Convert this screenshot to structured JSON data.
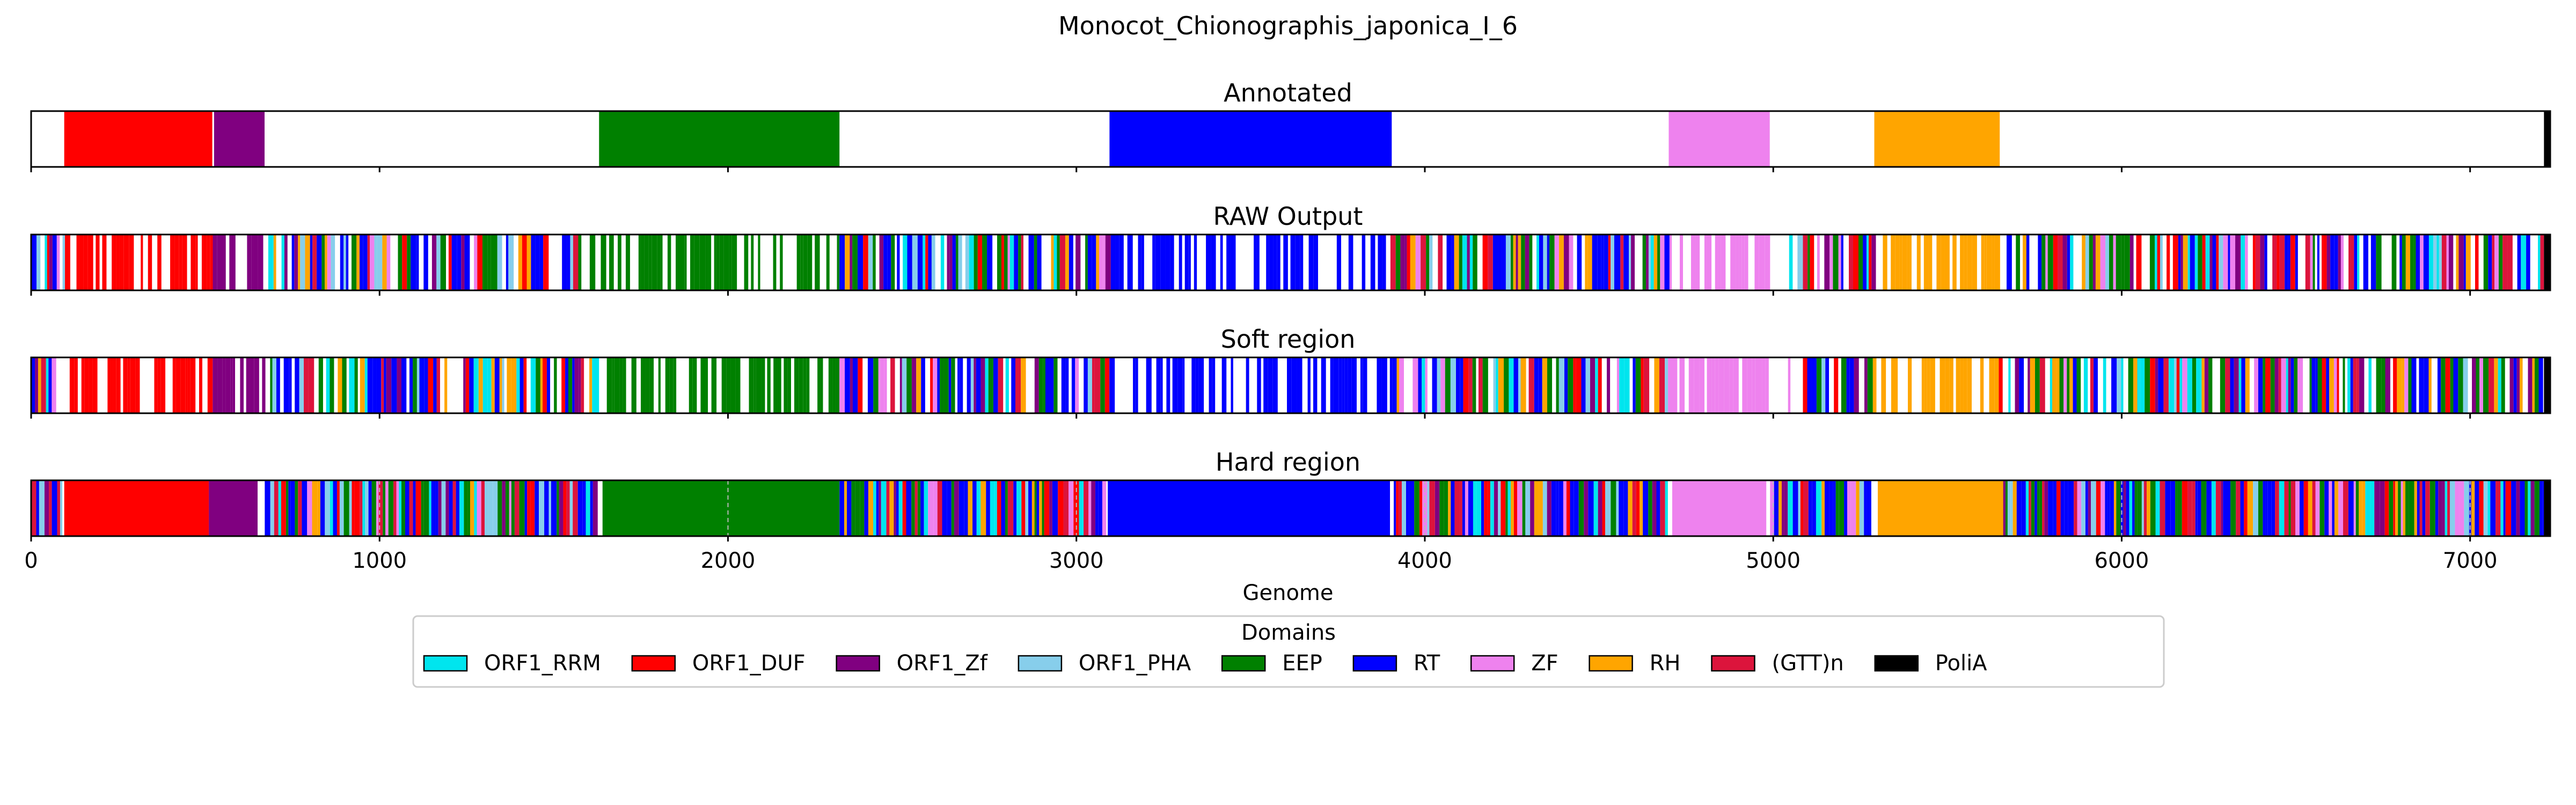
{
  "chart_data": {
    "type": "bar",
    "title": "Monocot_Chionographis_japonica_I_6",
    "xlabel": "Genome",
    "xlim": [
      0,
      7230
    ],
    "xticks": [
      0,
      1000,
      2000,
      3000,
      4000,
      5000,
      6000,
      7000
    ],
    "panels": [
      {
        "title": "Annotated",
        "segments": [
          {
            "domain": "ORF1_DUF",
            "start": 95,
            "end": 520
          },
          {
            "domain": "ORF1_Zf",
            "start": 525,
            "end": 670
          },
          {
            "domain": "EEP",
            "start": 1630,
            "end": 2320
          },
          {
            "domain": "RT",
            "start": 3095,
            "end": 3905
          },
          {
            "domain": "ZF",
            "start": 4700,
            "end": 4990
          },
          {
            "domain": "RH",
            "start": 5290,
            "end": 5650
          },
          {
            "domain": "PoliA",
            "start": 7212,
            "end": 7230
          }
        ]
      },
      {
        "title": "RAW Output",
        "mode": "raw",
        "gaps": [
          [
            4990,
            5040
          ]
        ]
      },
      {
        "title": "Soft region",
        "mode": "soft",
        "gaps": [
          [
            4990,
            5040
          ]
        ]
      },
      {
        "title": "Hard region",
        "mode": "hard",
        "segments": [
          {
            "domain": "ORF1_DUF",
            "start": 95,
            "end": 510
          },
          {
            "domain": "ORF1_Zf",
            "start": 510,
            "end": 650
          },
          {
            "domain": "EEP",
            "start": 1640,
            "end": 2320
          },
          {
            "domain": "RT",
            "start": 3090,
            "end": 3900
          },
          {
            "domain": "ZF",
            "start": 4710,
            "end": 4980
          },
          {
            "domain": "RH",
            "start": 5300,
            "end": 5660
          },
          {
            "domain": "PoliA",
            "start": 7212,
            "end": 7230
          }
        ]
      }
    ],
    "legend": {
      "title": "Domains",
      "placement": "bottom-center",
      "entries": [
        {
          "label": "ORF1_RRM",
          "color": "#00e5ee"
        },
        {
          "label": "ORF1_DUF",
          "color": "#ff0000"
        },
        {
          "label": "ORF1_Zf",
          "color": "#800080"
        },
        {
          "label": "ORF1_PHA",
          "color": "#87ceeb"
        },
        {
          "label": "EEP",
          "color": "#008000"
        },
        {
          "label": "RT",
          "color": "#0000ff"
        },
        {
          "label": "ZF",
          "color": "#ee82ee"
        },
        {
          "label": "RH",
          "color": "#ffa500"
        },
        {
          "label": "(GTT)n",
          "color": "#dc143c"
        },
        {
          "label": "PoliA",
          "color": "#000000"
        }
      ]
    }
  }
}
